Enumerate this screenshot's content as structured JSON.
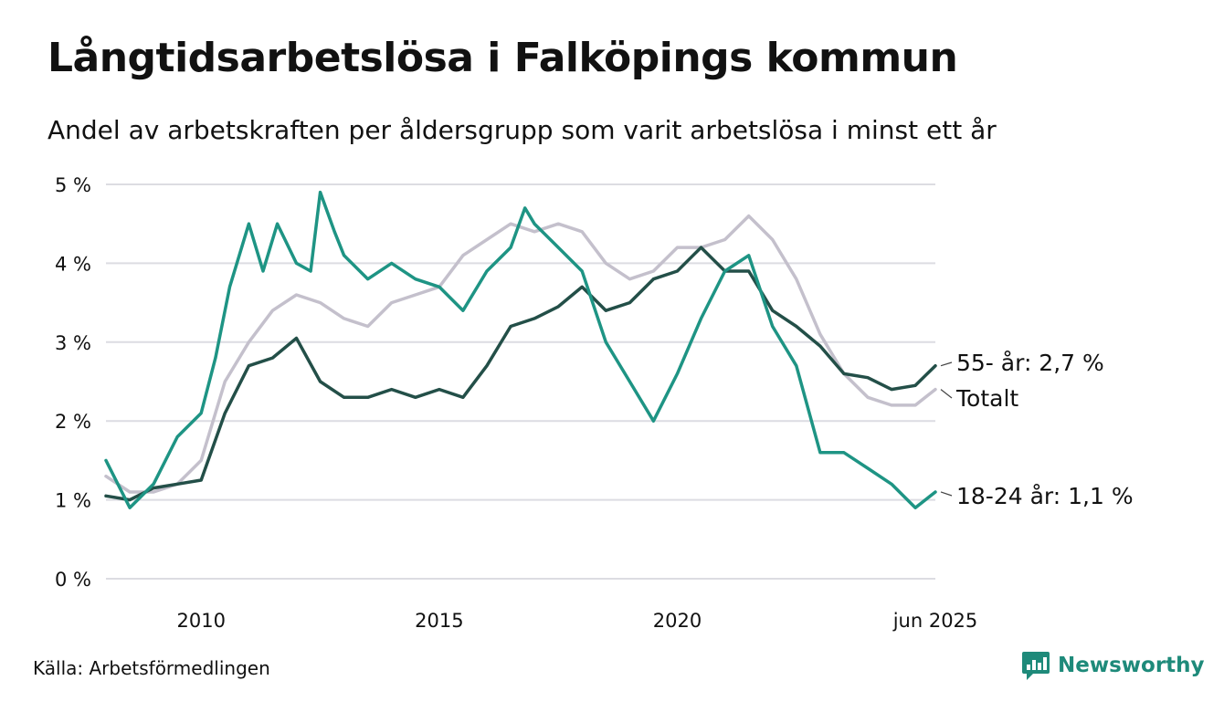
{
  "header": {
    "title": "Långtidsarbetslösa i Falköpings kommun",
    "subtitle": "Andel av arbetskraften per åldersgrupp som varit arbetslösa i minst ett år"
  },
  "footer": {
    "source": "Källa: Arbetsförmedlingen",
    "brand": "Newsworthy",
    "brand_icon": "newsworthy-logo-icon",
    "brand_color": "#1e8a7a"
  },
  "chart_data": {
    "type": "line",
    "title": "Långtidsarbetslösa i Falköpings kommun",
    "subtitle": "Andel av arbetskraften per åldersgrupp som varit arbetslösa i minst ett år",
    "xlabel": "",
    "ylabel": "",
    "x_range": [
      2008.0,
      2025.42
    ],
    "ylim": [
      0,
      5
    ],
    "y_ticks": [
      0,
      1,
      2,
      3,
      4,
      5
    ],
    "y_tick_labels": [
      "0 %",
      "1 %",
      "2 %",
      "3 %",
      "4 %",
      "5 %"
    ],
    "x_ticks": [
      2010,
      2015,
      2020,
      2025.42
    ],
    "x_tick_labels": [
      "2010",
      "2015",
      "2020",
      "jun 2025"
    ],
    "grid": "horizontal",
    "legend": "direct labels at line ends (right)",
    "series": [
      {
        "name": "Totalt",
        "label": "Totalt",
        "color": "#c4c0cc",
        "x": [
          2008.0,
          2008.5,
          2009.0,
          2009.5,
          2010.0,
          2010.5,
          2011.0,
          2011.5,
          2012.0,
          2012.5,
          2013.0,
          2013.5,
          2014.0,
          2014.5,
          2015.0,
          2015.5,
          2016.0,
          2016.5,
          2017.0,
          2017.5,
          2018.0,
          2018.5,
          2019.0,
          2019.5,
          2020.0,
          2020.5,
          2021.0,
          2021.5,
          2022.0,
          2022.5,
          2023.0,
          2023.5,
          2024.0,
          2024.5,
          2025.0,
          2025.42
        ],
        "y": [
          1.3,
          1.1,
          1.1,
          1.2,
          1.5,
          2.5,
          3.0,
          3.4,
          3.6,
          3.5,
          3.3,
          3.2,
          3.5,
          3.6,
          3.7,
          4.1,
          4.3,
          4.5,
          4.4,
          4.5,
          4.4,
          4.0,
          3.8,
          3.9,
          4.2,
          4.2,
          4.3,
          4.6,
          4.3,
          3.8,
          3.1,
          2.6,
          2.3,
          2.2,
          2.2,
          2.4
        ]
      },
      {
        "name": "55- år",
        "label": "55- år: 2,7 %",
        "color": "#234f48",
        "x": [
          2008.0,
          2008.5,
          2009.0,
          2009.5,
          2010.0,
          2010.5,
          2011.0,
          2011.5,
          2012.0,
          2012.5,
          2013.0,
          2013.5,
          2014.0,
          2014.5,
          2015.0,
          2015.5,
          2016.0,
          2016.5,
          2017.0,
          2017.5,
          2018.0,
          2018.5,
          2019.0,
          2019.5,
          2020.0,
          2020.5,
          2021.0,
          2021.5,
          2022.0,
          2022.5,
          2023.0,
          2023.5,
          2024.0,
          2024.5,
          2025.0,
          2025.42
        ],
        "y": [
          1.05,
          1.0,
          1.15,
          1.2,
          1.25,
          2.1,
          2.7,
          2.8,
          3.05,
          2.5,
          2.3,
          2.3,
          2.4,
          2.3,
          2.4,
          2.3,
          2.7,
          3.2,
          3.3,
          3.45,
          3.7,
          3.4,
          3.5,
          3.8,
          3.9,
          4.2,
          3.9,
          3.9,
          3.4,
          3.2,
          2.95,
          2.6,
          2.55,
          2.4,
          2.45,
          2.7
        ]
      },
      {
        "name": "18-24 år",
        "label": "18-24 år: 1,1 %",
        "color": "#1e9484",
        "x": [
          2008.0,
          2008.5,
          2009.0,
          2009.5,
          2010.0,
          2010.3,
          2010.6,
          2011.0,
          2011.3,
          2011.6,
          2012.0,
          2012.3,
          2012.5,
          2012.8,
          2013.0,
          2013.5,
          2014.0,
          2014.5,
          2015.0,
          2015.5,
          2016.0,
          2016.5,
          2016.8,
          2017.0,
          2017.5,
          2018.0,
          2018.5,
          2019.0,
          2019.5,
          2020.0,
          2020.5,
          2021.0,
          2021.5,
          2022.0,
          2022.5,
          2023.0,
          2023.5,
          2024.0,
          2024.5,
          2025.0,
          2025.42
        ],
        "y": [
          1.5,
          0.9,
          1.2,
          1.8,
          2.1,
          2.8,
          3.7,
          4.5,
          3.9,
          4.5,
          4.0,
          3.9,
          4.9,
          4.4,
          4.1,
          3.8,
          4.0,
          3.8,
          3.7,
          3.4,
          3.9,
          4.2,
          4.7,
          4.5,
          4.2,
          3.9,
          3.0,
          2.5,
          2.0,
          2.6,
          3.3,
          3.9,
          4.1,
          3.2,
          2.7,
          1.6,
          1.6,
          1.4,
          1.2,
          0.9,
          1.1
        ]
      }
    ]
  }
}
